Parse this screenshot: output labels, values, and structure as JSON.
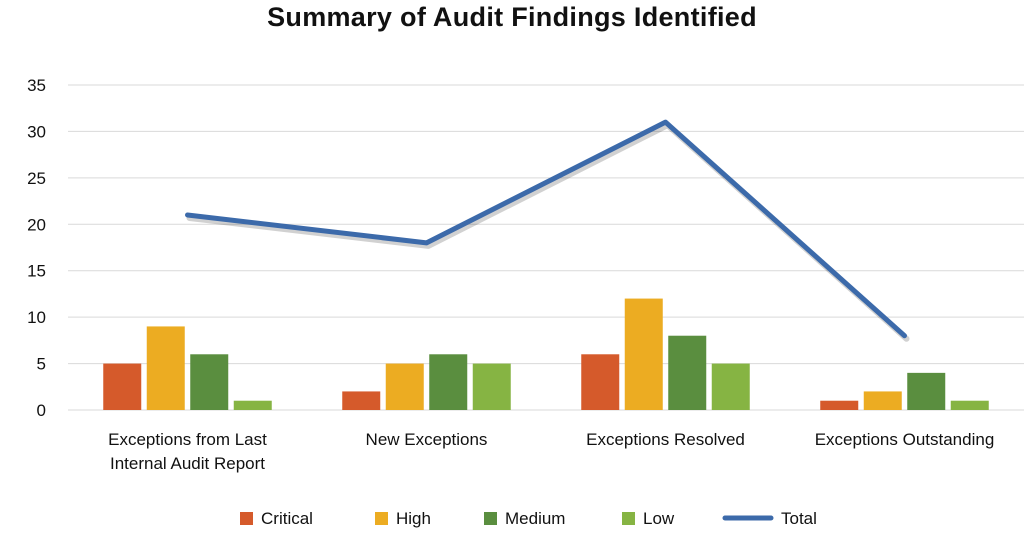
{
  "chart_data": {
    "type": "bar",
    "title": "Summary of Audit Findings Identified",
    "categories": [
      [
        "Exceptions from Last",
        "Internal Audit Report"
      ],
      [
        "New Exceptions"
      ],
      [
        "Exceptions Resolved"
      ],
      [
        "Exceptions Outstanding"
      ]
    ],
    "ylim": [
      0,
      35
    ],
    "yticks": [
      0,
      5,
      10,
      15,
      20,
      25,
      30,
      35
    ],
    "grid": true,
    "legend_position": "bottom",
    "series": [
      {
        "name": "Critical",
        "type": "bar",
        "color": "#d55a2b",
        "values": [
          5,
          2,
          6,
          1
        ]
      },
      {
        "name": "High",
        "type": "bar",
        "color": "#ecac22",
        "values": [
          9,
          5,
          12,
          2
        ]
      },
      {
        "name": "Medium",
        "type": "bar",
        "color": "#5a8e3f",
        "values": [
          6,
          6,
          8,
          4
        ]
      },
      {
        "name": "Low",
        "type": "bar",
        "color": "#86b443",
        "values": [
          1,
          5,
          5,
          1
        ]
      },
      {
        "name": "Total",
        "type": "line",
        "color": "#3c6aaa",
        "values": [
          21,
          18,
          31,
          8
        ]
      }
    ]
  }
}
